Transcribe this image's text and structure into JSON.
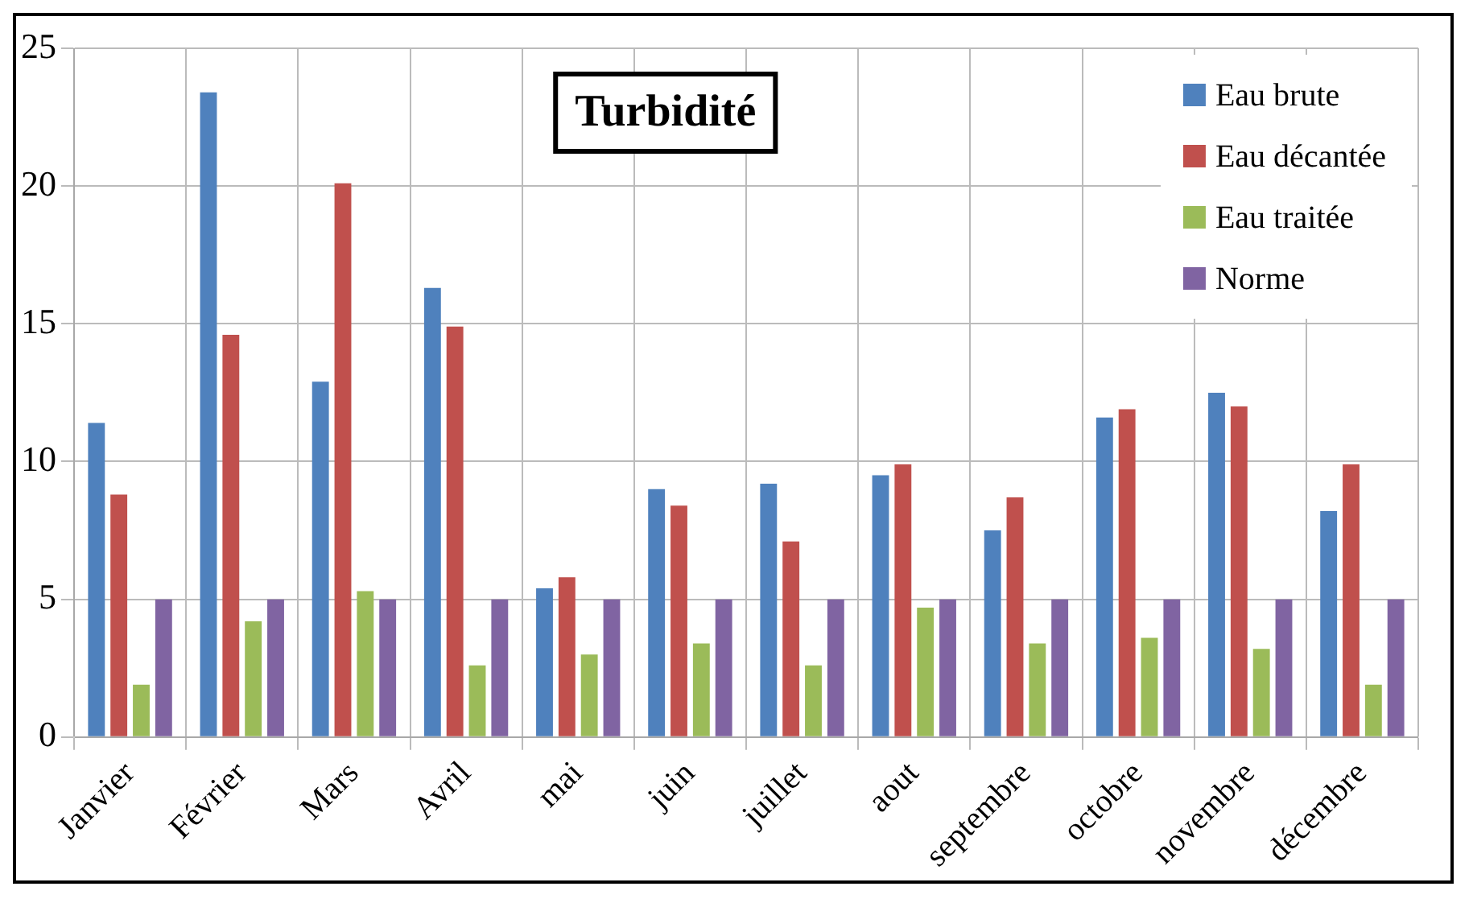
{
  "chart_data": {
    "type": "bar",
    "title": "Turbidité",
    "categories": [
      "Janvier",
      "Février",
      "Mars",
      "Avril",
      "mai",
      "juin",
      "juillet",
      "aout",
      "septembre",
      "octobre",
      "novembre",
      "décembre"
    ],
    "series": [
      {
        "name": "Eau brute",
        "color": "#4f81bd",
        "values": [
          11.4,
          23.4,
          12.9,
          16.3,
          5.4,
          9.0,
          9.2,
          9.5,
          7.5,
          11.6,
          12.5,
          8.2
        ]
      },
      {
        "name": "Eau décantée",
        "color": "#c0504d",
        "values": [
          8.8,
          14.6,
          20.1,
          14.9,
          5.8,
          8.4,
          7.1,
          9.9,
          8.7,
          11.9,
          12.0,
          9.9
        ]
      },
      {
        "name": "Eau traitée",
        "color": "#9bbb59",
        "values": [
          1.9,
          4.2,
          5.3,
          2.6,
          3.0,
          3.4,
          2.6,
          4.7,
          3.4,
          3.6,
          3.2,
          1.9
        ]
      },
      {
        "name": "Norme",
        "color": "#8064a2",
        "values": [
          5,
          5,
          5,
          5,
          5,
          5,
          5,
          5,
          5,
          5,
          5,
          5
        ]
      }
    ],
    "ylim": [
      0,
      25
    ],
    "yticks": [
      0,
      5,
      10,
      15,
      20,
      25
    ],
    "grid": true,
    "legend": "top right"
  }
}
